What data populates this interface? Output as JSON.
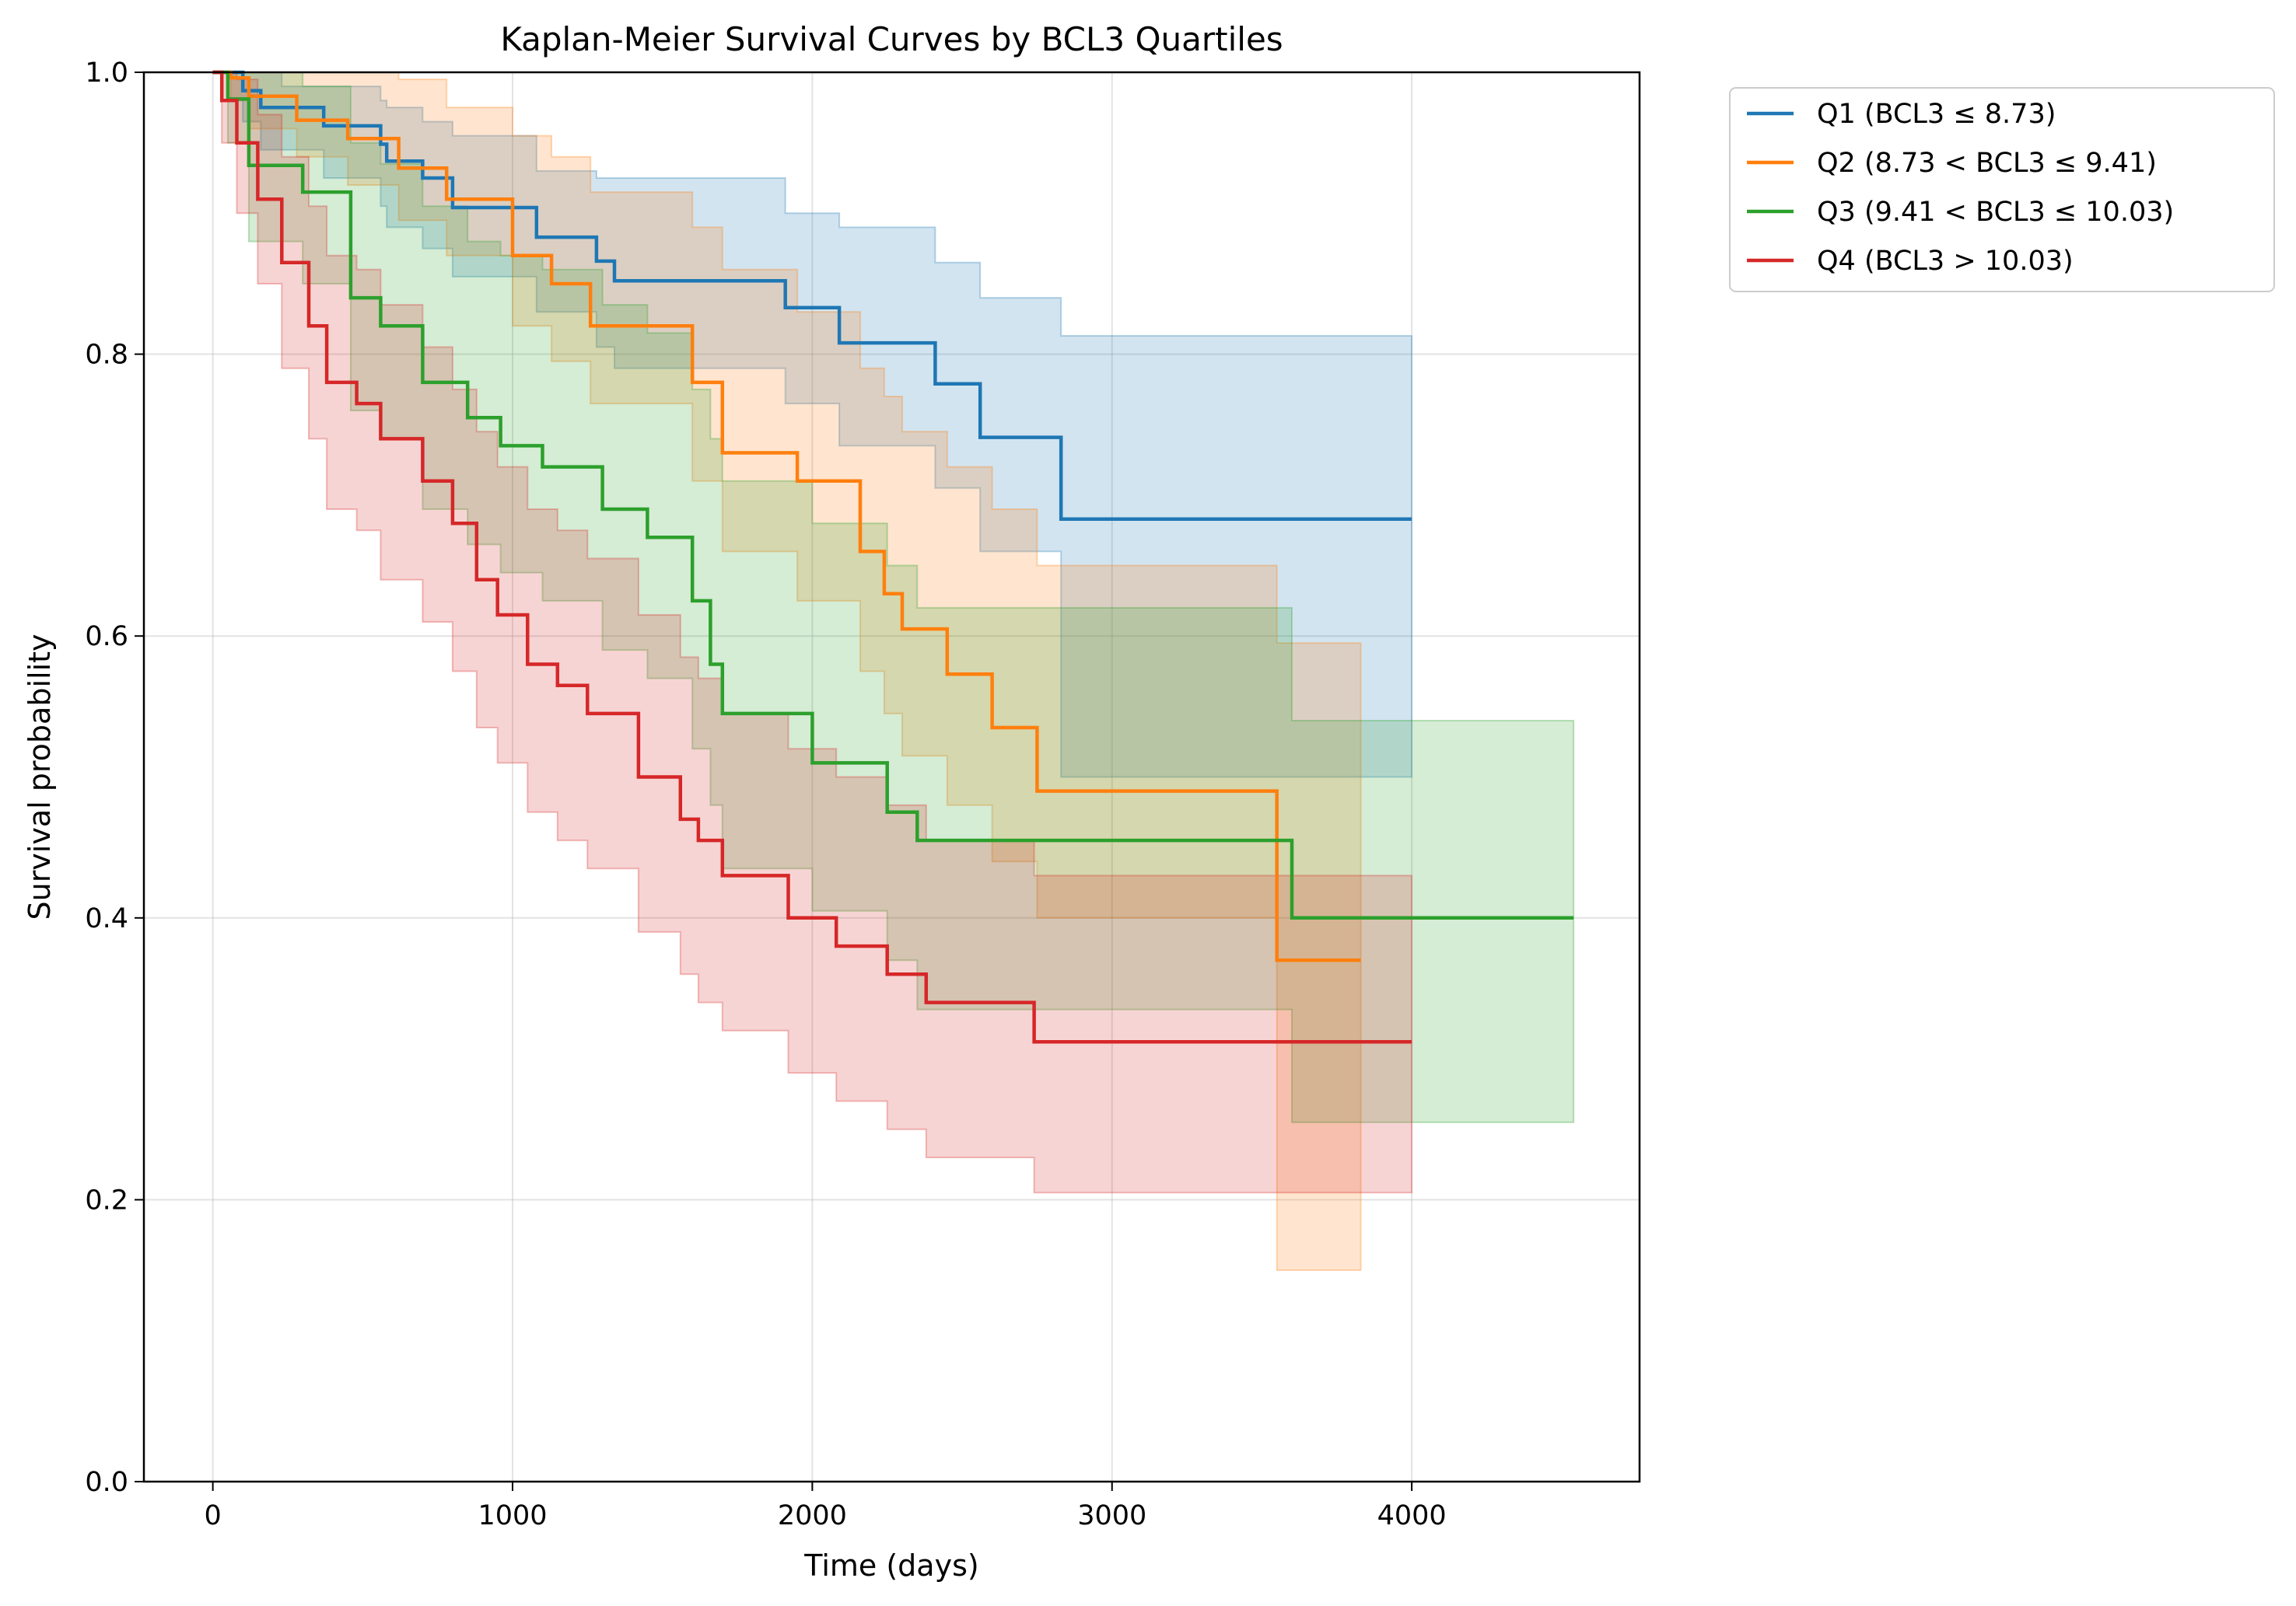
{
  "chart_data": {
    "type": "line",
    "step": true,
    "title": "Kaplan-Meier Survival Curves by BCL3 Quartiles",
    "xlabel": "Time (days)",
    "ylabel": "Survival probability",
    "xlim": [
      -230,
      4760
    ],
    "ylim": [
      0,
      1
    ],
    "xticks": [
      0,
      1000,
      2000,
      3000,
      4000
    ],
    "xtick_labels": [
      "0",
      "1000",
      "2000",
      "3000",
      "4000"
    ],
    "yticks": [
      0.0,
      0.2,
      0.4,
      0.6,
      0.8,
      1.0
    ],
    "ytick_labels": [
      "0.0",
      "0.2",
      "0.4",
      "0.6",
      "0.8",
      "1.0"
    ],
    "grid": true,
    "legend_position": "outside-top-right",
    "series": [
      {
        "name": "Q1 (BCL3 ≤ 8.73)",
        "color": "#1f77b4",
        "x": [
          0,
          50,
          100,
          160,
          230,
          370,
          560,
          580,
          700,
          800,
          940,
          1080,
          1280,
          1340,
          1910,
          2090,
          2410,
          2560,
          2830,
          4000
        ],
        "y": [
          1.0,
          1.0,
          0.987,
          0.975,
          0.975,
          0.962,
          0.949,
          0.937,
          0.925,
          0.904,
          0.904,
          0.883,
          0.866,
          0.852,
          0.833,
          0.808,
          0.779,
          0.741,
          0.683,
          0.683
        ],
        "ci_upper": [
          1.0,
          1.0,
          1.0,
          1.0,
          0.99,
          0.99,
          0.98,
          0.975,
          0.965,
          0.955,
          0.955,
          0.93,
          0.925,
          0.925,
          0.9,
          0.89,
          0.865,
          0.84,
          0.813,
          0.813
        ],
        "ci_lower": [
          1.0,
          0.98,
          0.965,
          0.945,
          0.945,
          0.925,
          0.905,
          0.89,
          0.875,
          0.855,
          0.855,
          0.83,
          0.805,
          0.79,
          0.765,
          0.735,
          0.705,
          0.66,
          0.5,
          0.5
        ]
      },
      {
        "name": "Q2 (8.73 < BCL3 ≤ 9.41)",
        "color": "#ff7f0e",
        "x": [
          0,
          60,
          120,
          280,
          450,
          620,
          780,
          1000,
          1130,
          1260,
          1600,
          1700,
          1950,
          2160,
          2240,
          2300,
          2450,
          2600,
          2750,
          3550,
          3830
        ],
        "y": [
          1.0,
          0.996,
          0.983,
          0.966,
          0.953,
          0.932,
          0.91,
          0.87,
          0.85,
          0.82,
          0.78,
          0.73,
          0.71,
          0.66,
          0.63,
          0.605,
          0.573,
          0.535,
          0.49,
          0.37,
          0.37
        ],
        "ci_upper": [
          1.0,
          1.0,
          1.0,
          1.0,
          1.0,
          0.995,
          0.975,
          0.955,
          0.94,
          0.915,
          0.89,
          0.86,
          0.83,
          0.79,
          0.77,
          0.745,
          0.72,
          0.69,
          0.65,
          0.595,
          0.595
        ],
        "ci_lower": [
          1.0,
          0.98,
          0.96,
          0.94,
          0.92,
          0.895,
          0.87,
          0.82,
          0.795,
          0.765,
          0.71,
          0.66,
          0.625,
          0.575,
          0.545,
          0.515,
          0.48,
          0.44,
          0.4,
          0.15,
          0.15
        ]
      },
      {
        "name": "Q3 (9.41 < BCL3 ≤ 10.03)",
        "color": "#2ca02c",
        "x": [
          0,
          50,
          120,
          300,
          460,
          560,
          700,
          850,
          960,
          1100,
          1300,
          1450,
          1600,
          1660,
          1700,
          2000,
          2250,
          2350,
          3600,
          4540
        ],
        "y": [
          1.0,
          0.981,
          0.934,
          0.915,
          0.84,
          0.82,
          0.78,
          0.755,
          0.735,
          0.72,
          0.69,
          0.67,
          0.625,
          0.58,
          0.545,
          0.51,
          0.475,
          0.455,
          0.4,
          0.4
        ],
        "ci_upper": [
          1.0,
          1.0,
          1.0,
          0.99,
          0.95,
          0.935,
          0.905,
          0.88,
          0.87,
          0.86,
          0.835,
          0.815,
          0.775,
          0.74,
          0.71,
          0.68,
          0.65,
          0.62,
          0.54,
          0.54
        ],
        "ci_lower": [
          1.0,
          0.95,
          0.88,
          0.85,
          0.76,
          0.74,
          0.69,
          0.665,
          0.645,
          0.625,
          0.59,
          0.57,
          0.52,
          0.48,
          0.435,
          0.405,
          0.37,
          0.335,
          0.255,
          0.255
        ]
      },
      {
        "name": "Q4 (BCL3 > 10.03)",
        "color": "#d62728",
        "x": [
          0,
          30,
          80,
          150,
          230,
          320,
          380,
          480,
          560,
          700,
          800,
          880,
          950,
          1050,
          1150,
          1250,
          1420,
          1560,
          1620,
          1700,
          1920,
          2080,
          2250,
          2380,
          2740,
          4000
        ],
        "y": [
          1.0,
          0.98,
          0.95,
          0.91,
          0.865,
          0.82,
          0.78,
          0.765,
          0.74,
          0.71,
          0.68,
          0.64,
          0.615,
          0.58,
          0.565,
          0.545,
          0.5,
          0.47,
          0.455,
          0.43,
          0.4,
          0.38,
          0.36,
          0.34,
          0.312,
          0.312
        ],
        "ci_upper": [
          1.0,
          1.0,
          0.995,
          0.97,
          0.94,
          0.905,
          0.87,
          0.86,
          0.835,
          0.805,
          0.775,
          0.745,
          0.72,
          0.69,
          0.675,
          0.655,
          0.615,
          0.585,
          0.57,
          0.545,
          0.52,
          0.5,
          0.48,
          0.455,
          0.43,
          0.43
        ],
        "ci_lower": [
          1.0,
          0.95,
          0.9,
          0.85,
          0.79,
          0.74,
          0.69,
          0.675,
          0.64,
          0.61,
          0.575,
          0.535,
          0.51,
          0.475,
          0.455,
          0.435,
          0.39,
          0.36,
          0.34,
          0.32,
          0.29,
          0.27,
          0.25,
          0.23,
          0.205,
          0.205
        ]
      }
    ]
  }
}
